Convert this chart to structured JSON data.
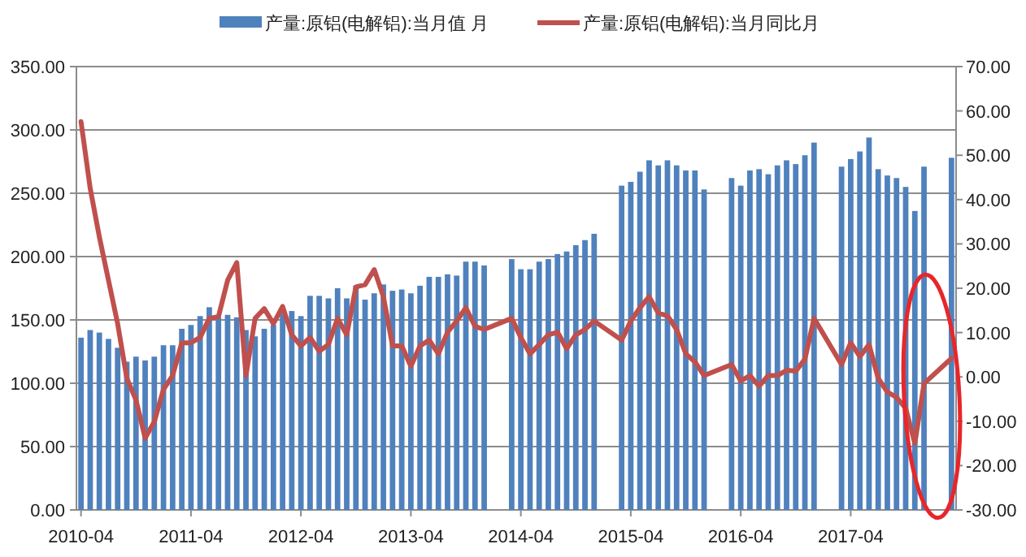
{
  "chart_data": {
    "type": "bar",
    "legend": "top",
    "grid": "y",
    "categories": [
      "2010-04",
      null,
      null,
      null,
      null,
      null,
      null,
      null,
      null,
      null,
      null,
      null,
      "2011-04",
      null,
      null,
      null,
      null,
      null,
      null,
      null,
      null,
      null,
      null,
      null,
      "2012-04",
      null,
      null,
      null,
      null,
      null,
      null,
      null,
      null,
      null,
      null,
      null,
      "2013-04",
      null,
      null,
      null,
      null,
      null,
      null,
      null,
      null,
      null,
      null,
      null,
      "2014-04",
      null,
      null,
      null,
      null,
      null,
      null,
      null,
      null,
      null,
      null,
      null,
      "2015-04",
      null,
      null,
      null,
      null,
      null,
      null,
      null,
      null,
      null,
      null,
      null,
      "2016-04",
      null,
      null,
      null,
      null,
      null,
      null,
      null,
      null,
      null,
      null,
      null,
      "2017-04",
      null,
      null,
      null,
      null,
      null,
      null,
      null,
      null,
      null,
      null,
      null
    ],
    "series": [
      {
        "name": "产量:原铝(电解铝):当月值 月",
        "color": "#4f81bd",
        "values": [
          136,
          142,
          140,
          135,
          128,
          117,
          121,
          118,
          121,
          130,
          130,
          143,
          146,
          153,
          160,
          152,
          154,
          152,
          142,
          137,
          143,
          146,
          155,
          157,
          153,
          169,
          169,
          167,
          175,
          167,
          177,
          166,
          171,
          178,
          173,
          174,
          171,
          177,
          184,
          184,
          186,
          185,
          196,
          196,
          193,
          null,
          null,
          198,
          190,
          190,
          196,
          198,
          202,
          204,
          209,
          213,
          218,
          null,
          null,
          256,
          259,
          267,
          276,
          272,
          276,
          272,
          268,
          268,
          253,
          null,
          null,
          262,
          256,
          268,
          269,
          265,
          272,
          276,
          273,
          280,
          290,
          null,
          null,
          271,
          277,
          283,
          294,
          269,
          264,
          262,
          255,
          236,
          271,
          null,
          null,
          278
        ]
      },
      {
        "name": "产量:原铝(电解铝):当月同比月",
        "type": "line",
        "axis": "y2",
        "color": "#c0504d",
        "values": [
          57.6,
          42.6,
          31.6,
          21.8,
          12.0,
          -0.3,
          -5.2,
          -13.8,
          -10.1,
          -2.8,
          0.3,
          7.7,
          7.7,
          8.9,
          13.2,
          13.6,
          21.8,
          25.8,
          0.3,
          13.2,
          15.4,
          12.0,
          15.9,
          9.5,
          7.0,
          8.9,
          5.8,
          7.3,
          13.2,
          9.5,
          20.3,
          20.8,
          24.2,
          18.1,
          7.0,
          7.0,
          2.4,
          7.0,
          8.3,
          5.2,
          10.1,
          12.6,
          15.6,
          11.4,
          10.7,
          null,
          null,
          13.2,
          8.9,
          5.2,
          7.3,
          9.5,
          10.1,
          6.4,
          9.5,
          10.7,
          12.6,
          null,
          null,
          8.3,
          12.6,
          15.6,
          18.1,
          14.4,
          13.8,
          10.7,
          5.2,
          3.4,
          0.3,
          null,
          null,
          2.8,
          -0.9,
          0.3,
          -2.1,
          0.3,
          0.3,
          1.5,
          1.3,
          4.0,
          13.2,
          null,
          null,
          2.8,
          7.7,
          4.6,
          7.3,
          -0.3,
          -3.4,
          -4.6,
          -7.1,
          -15.0,
          -1.5,
          null,
          null,
          4.2
        ]
      }
    ],
    "ylim": [
      0,
      350
    ],
    "yticks": [
      {
        "value": 0,
        "label": "0.00"
      },
      {
        "value": 50,
        "label": "50.00"
      },
      {
        "value": 100,
        "label": "100.00"
      },
      {
        "value": 150,
        "label": "150.00"
      },
      {
        "value": 200,
        "label": "200.00"
      },
      {
        "value": 250,
        "label": "250.00"
      },
      {
        "value": 300,
        "label": "300.00"
      },
      {
        "value": 350,
        "label": "350.00"
      }
    ],
    "y2lim": [
      -30,
      70
    ],
    "y2ticks": [
      {
        "value": -30,
        "label": "-30.00"
      },
      {
        "value": -20,
        "label": "-20.00"
      },
      {
        "value": -10,
        "label": "-10.00"
      },
      {
        "value": 0,
        "label": "0.00"
      },
      {
        "value": 10,
        "label": "10.00"
      },
      {
        "value": 20,
        "label": "20.00"
      },
      {
        "value": 30,
        "label": "30.00"
      },
      {
        "value": 40,
        "label": "40.00"
      },
      {
        "value": 50,
        "label": "50.00"
      },
      {
        "value": 60,
        "label": "60.00"
      },
      {
        "value": 70,
        "label": "70.00"
      }
    ]
  }
}
